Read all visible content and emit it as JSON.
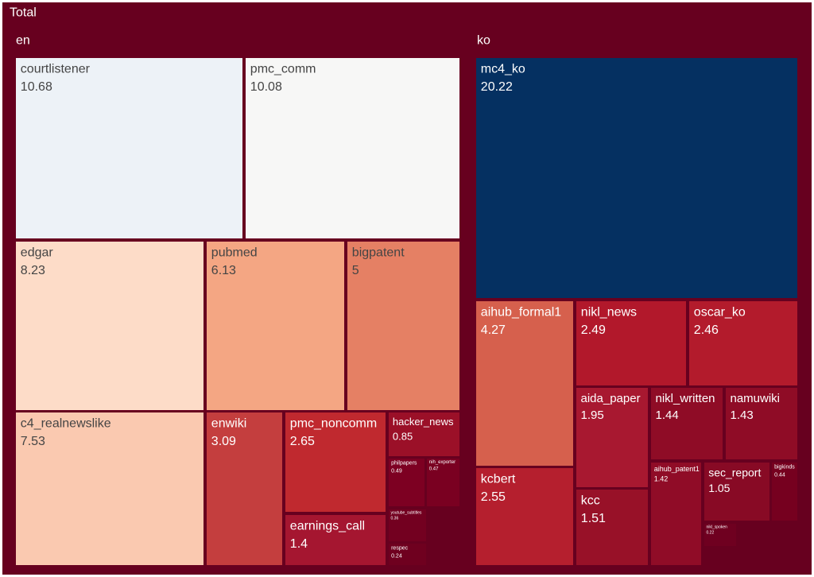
{
  "chart_data": {
    "type": "treemap",
    "title": "Total",
    "background": "#67001f",
    "groups": [
      {
        "name": "en",
        "categories": [
          "courtlistener",
          "pmc_comm",
          "edgar",
          "pubmed",
          "bigpatent",
          "c4_realnewslike",
          "enwiki",
          "pmc_noncomm",
          "hacker_news",
          "earnings_call",
          "philpapers",
          "nih_exporter",
          "youtube_subtitles",
          "respec"
        ],
        "values": [
          10.68,
          10.08,
          8.23,
          6.13,
          5,
          7.53,
          3.09,
          2.65,
          0.85,
          1.4,
          0.49,
          0.47,
          0.36,
          0.24
        ],
        "colors": [
          "#edf2f7",
          "#f7f7f6",
          "#fddcc8",
          "#f4a683",
          "#e58064",
          "#fac9b0",
          "#c43e3e",
          "#c0292f",
          "#9b1028",
          "#a51630",
          "#7d0022",
          "#7a0021",
          "#730020",
          "#6f001f"
        ]
      },
      {
        "name": "ko",
        "categories": [
          "mc4_ko",
          "aihub_formal1",
          "nikl_news",
          "oscar_ko",
          "kcbert",
          "aida_paper",
          "nikl_written",
          "namuwiki",
          "kcc",
          "aihub_patent1",
          "sec_report",
          "bigkinds",
          "nikl_spoken"
        ],
        "values": [
          20.22,
          4.27,
          2.49,
          2.46,
          2.55,
          1.95,
          1.44,
          1.43,
          1.51,
          1.42,
          1.05,
          0.44,
          0.22
        ],
        "colors": [
          "#053061",
          "#d6604d",
          "#b2182b",
          "#b31b2c",
          "#b51f2e",
          "#a81830",
          "#8f0c26",
          "#8f0c26",
          "#981128",
          "#900c27",
          "#880a25",
          "#76001f",
          "#6f0020"
        ]
      }
    ]
  }
}
